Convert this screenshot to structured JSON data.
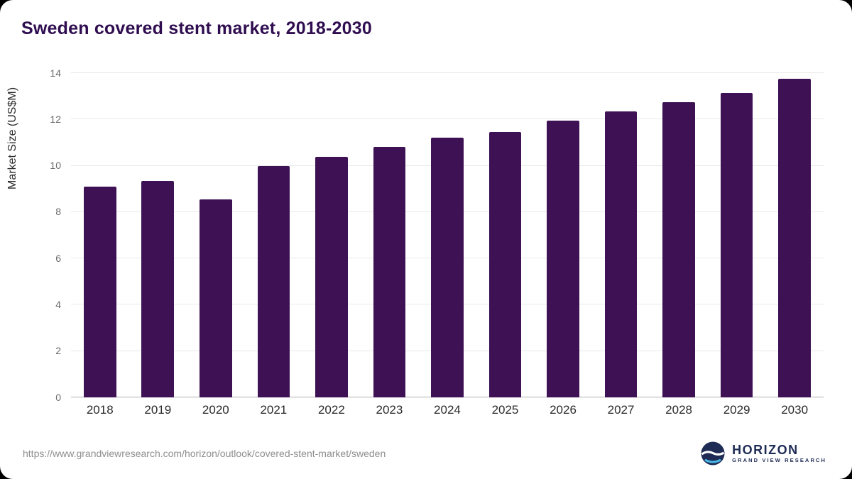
{
  "chart_data": {
    "type": "bar",
    "title": "Sweden covered stent market, 2018-2030",
    "categories": [
      "2018",
      "2019",
      "2020",
      "2021",
      "2022",
      "2023",
      "2024",
      "2025",
      "2026",
      "2027",
      "2028",
      "2029",
      "2030"
    ],
    "values": [
      9.1,
      9.35,
      8.55,
      10.0,
      10.4,
      10.8,
      11.2,
      11.45,
      11.95,
      12.35,
      12.75,
      13.15,
      13.75
    ],
    "xlabel": "",
    "ylabel": "Market Size (US$M)",
    "ylim": [
      0,
      14
    ],
    "yticks": [
      0,
      2,
      4,
      6,
      8,
      10,
      12,
      14
    ],
    "bar_color": "#3d1154",
    "grid": true,
    "legend": false
  },
  "footer": {
    "source_url": "https://www.grandviewresearch.com/horizon/outlook/covered-stent-market/sweden",
    "logo_name": "HORIZON",
    "logo_subtitle": "GRAND VIEW RESEARCH"
  }
}
